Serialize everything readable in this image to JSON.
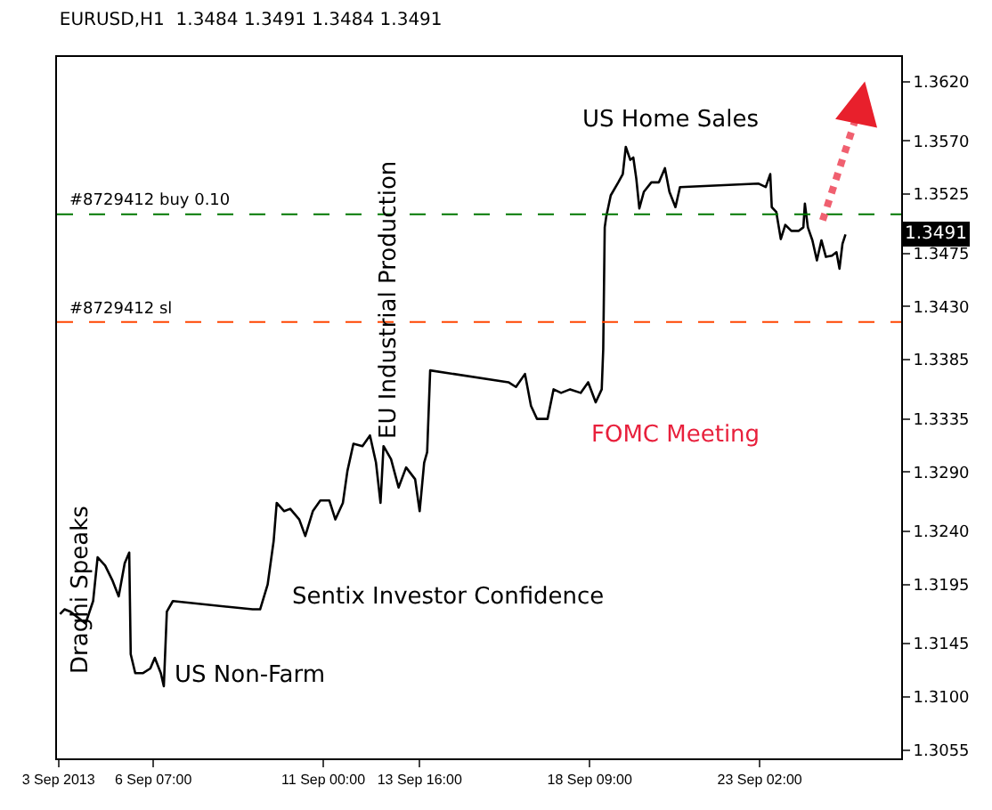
{
  "chart_data": {
    "type": "line",
    "title": "EURUSD,H1  1.3484 1.3491 1.3484 1.3491",
    "x": [
      "2013-09-03T17:00",
      "2013-09-03T20:00",
      "2013-09-04T00:00",
      "2013-09-04T06:00",
      "2013-09-04T10:00",
      "2013-09-04T15:00",
      "2013-09-04T18:00",
      "2013-09-04T23:00",
      "2013-09-05T04:00",
      "2013-09-05T08:00",
      "2013-09-05T12:00",
      "2013-09-05T15:00",
      "2013-09-05T16:00",
      "2013-09-05T19:00",
      "2013-09-06T00:00",
      "2013-09-06T05:00",
      "2013-09-06T08:00",
      "2013-09-06T12:00",
      "2013-09-06T14:00",
      "2013-09-06T16:00",
      "2013-09-06T20:00",
      "2013-09-09T01:00",
      "2013-09-09T06:00",
      "2013-09-09T11:00",
      "2013-09-09T15:00",
      "2013-09-09T17:00",
      "2013-09-09T22:00",
      "2013-09-10T02:00",
      "2013-09-10T08:00",
      "2013-09-10T12:00",
      "2013-09-10T17:00",
      "2013-09-10T22:00",
      "2013-09-11T04:00",
      "2013-09-11T08:00",
      "2013-09-11T13:00",
      "2013-09-11T16:00",
      "2013-09-11T20:00",
      "2013-09-12T02:00",
      "2013-09-12T07:00",
      "2013-09-12T11:00",
      "2013-09-12T14:00",
      "2013-09-12T16:00",
      "2013-09-12T21:00",
      "2013-09-13T02:00",
      "2013-09-13T07:00",
      "2013-09-13T13:00",
      "2013-09-13T16:00",
      "2013-09-13T19:00",
      "2013-09-13T21:00",
      "2013-09-13T23:00",
      "2013-09-16T03:00",
      "2013-09-16T08:00",
      "2013-09-16T14:00",
      "2013-09-16T18:00",
      "2013-09-16T22:00",
      "2013-09-17T05:00",
      "2013-09-17T09:00",
      "2013-09-17T14:00",
      "2013-09-17T20:00",
      "2013-09-18T03:00",
      "2013-09-18T08:00",
      "2013-09-18T13:00",
      "2013-09-18T17:00",
      "2013-09-18T18:00",
      "2013-09-18T19:00",
      "2013-09-18T20:00",
      "2013-09-18T23:00",
      "2013-09-19T04:00",
      "2013-09-19T07:00",
      "2013-09-19T09:00",
      "2013-09-19T12:00",
      "2013-09-19T14:00",
      "2013-09-19T16:00",
      "2013-09-19T18:00",
      "2013-09-19T21:00",
      "2013-09-20T02:00",
      "2013-09-20T07:00",
      "2013-09-20T11:00",
      "2013-09-20T14:00",
      "2013-09-20T18:00",
      "2013-09-20T21:00",
      "2013-09-23T01:00",
      "2013-09-23T06:00",
      "2013-09-23T09:00",
      "2013-09-23T10:00",
      "2013-09-23T13:00",
      "2013-09-23T16:00",
      "2013-09-23T19:00",
      "2013-09-23T23:00",
      "2013-09-24T04:00",
      "2013-09-24T07:00",
      "2013-09-24T08:00",
      "2013-09-24T10:00",
      "2013-09-24T13:00",
      "2013-09-24T16:00",
      "2013-09-24T19:00",
      "2013-09-24T22:00",
      "2013-09-25T02:00",
      "2013-09-25T05:00",
      "2013-09-25T07:00",
      "2013-09-25T09:00",
      "2013-09-25T11:00"
    ],
    "series": [
      {
        "color": "#000000",
        "values": [
          1.317,
          1.3174,
          1.3172,
          1.3166,
          1.3162,
          1.3181,
          1.3218,
          1.3211,
          1.3198,
          1.3185,
          1.3213,
          1.3222,
          1.3136,
          1.312,
          1.312,
          1.3124,
          1.3133,
          1.312,
          1.3109,
          1.3172,
          1.3181,
          1.3174,
          1.3174,
          1.3195,
          1.3232,
          1.3264,
          1.3257,
          1.3259,
          1.325,
          1.3236,
          1.3257,
          1.3266,
          1.3266,
          1.325,
          1.3264,
          1.3291,
          1.3314,
          1.3312,
          1.3321,
          1.3298,
          1.3264,
          1.3312,
          1.3301,
          1.3277,
          1.3294,
          1.3284,
          1.3257,
          1.3298,
          1.3307,
          1.3376,
          1.3366,
          1.3362,
          1.3373,
          1.3346,
          1.3335,
          1.3335,
          1.336,
          1.3357,
          1.336,
          1.3357,
          1.3366,
          1.3349,
          1.336,
          1.3394,
          1.3497,
          1.3506,
          1.3524,
          1.3535,
          1.3542,
          1.3565,
          1.3554,
          1.3556,
          1.3538,
          1.3513,
          1.3527,
          1.3535,
          1.3535,
          1.3547,
          1.3527,
          1.3514,
          1.3531,
          1.3534,
          1.3531,
          1.3542,
          1.3514,
          1.351,
          1.3487,
          1.3499,
          1.3494,
          1.3494,
          1.3497,
          1.3517,
          1.3497,
          1.3486,
          1.3469,
          1.3486,
          1.3472,
          1.3473,
          1.3476,
          1.3462,
          1.3483,
          1.3491
        ]
      }
    ],
    "xlim": [
      "2013-09-03T15:00",
      "2013-09-27T00:00"
    ],
    "xticks": [
      {
        "value": "2013-09-03T16:00",
        "label": "3 Sep 2013"
      },
      {
        "value": "2013-09-06T07:00",
        "label": "6 Sep 07:00"
      },
      {
        "value": "2013-09-11T00:00",
        "label": "11 Sep 00:00"
      },
      {
        "value": "2013-09-13T16:00",
        "label": "13 Sep 16:00"
      },
      {
        "value": "2013-09-18T09:00",
        "label": "18 Sep 09:00"
      },
      {
        "value": "2013-09-23T02:00",
        "label": "23 Sep 02:00"
      }
    ],
    "ylim": [
      1.3048,
      1.3641
    ],
    "yticks": [
      {
        "value": 1.362,
        "label": "1.3620"
      },
      {
        "value": 1.357,
        "label": "1.3570"
      },
      {
        "value": 1.3525,
        "label": "1.3525"
      },
      {
        "value": 1.3475,
        "label": "1.3475"
      },
      {
        "value": 1.343,
        "label": "1.3430"
      },
      {
        "value": 1.3385,
        "label": "1.3385"
      },
      {
        "value": 1.3335,
        "label": "1.3335"
      },
      {
        "value": 1.329,
        "label": "1.3290"
      },
      {
        "value": 1.324,
        "label": "1.3240"
      },
      {
        "value": 1.3195,
        "label": "1.3195"
      },
      {
        "value": 1.3145,
        "label": "1.3145"
      },
      {
        "value": 1.31,
        "label": "1.3100"
      },
      {
        "value": 1.3055,
        "label": "1.3055"
      }
    ],
    "ref_lines": [
      {
        "axis": "y",
        "value": 1.3508,
        "label": "#8729412 buy 0.10",
        "color": "#007700",
        "line_style": "dashed"
      },
      {
        "axis": "y",
        "value": 1.3417,
        "label": "#8729412 sl",
        "color": "#ff4500",
        "line_style": "dashed"
      }
    ],
    "annotations": [
      "US Home Sales",
      "EU Industrial Production",
      "FOMC Meeting",
      "Sentix Investor Confidence",
      "US Non-Farm",
      "Draghi Speaks",
      {
        "text": "1.3491",
        "y": 1.3491
      }
    ],
    "marker": "none",
    "line_style": "solid"
  }
}
